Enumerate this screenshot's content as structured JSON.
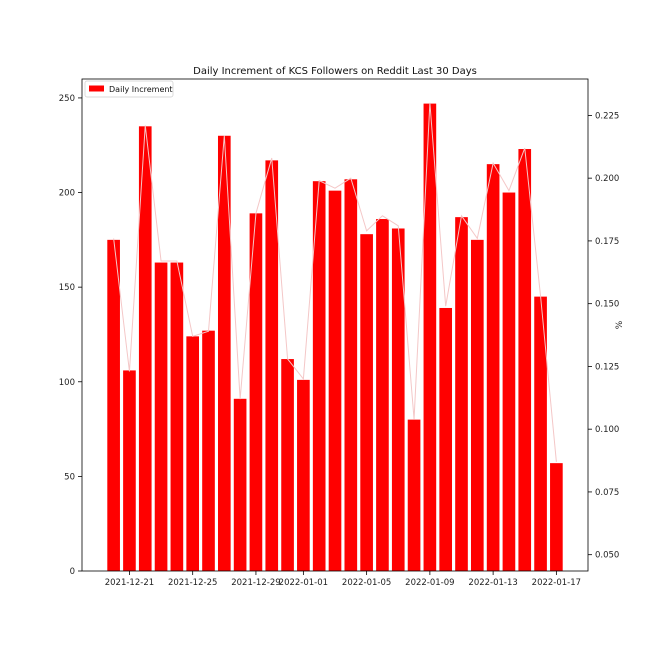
{
  "chart_data": {
    "type": "bar",
    "title": "Daily Increment of KCS Followers on Reddit Last 30 Days",
    "xlabel": "",
    "ylabel": "",
    "y2label": "%",
    "legend": {
      "placement": "top-left",
      "entries": [
        "Daily Increment"
      ]
    },
    "bar_color": "#ff0000",
    "line_color": "#f4c7c7",
    "series": [
      {
        "name": "Daily Increment",
        "type": "bar",
        "axis": "left",
        "x": [
          "2021-12-20",
          "2021-12-21",
          "2021-12-22",
          "2021-12-23",
          "2021-12-24",
          "2021-12-25",
          "2021-12-26",
          "2021-12-27",
          "2021-12-28",
          "2021-12-29",
          "2021-12-30",
          "2021-12-31",
          "2022-01-01",
          "2022-01-02",
          "2022-01-03",
          "2022-01-04",
          "2022-01-05",
          "2022-01-06",
          "2022-01-07",
          "2022-01-08",
          "2022-01-09",
          "2022-01-10",
          "2022-01-11",
          "2022-01-12",
          "2022-01-13",
          "2022-01-14",
          "2022-01-15",
          "2022-01-16",
          "2022-01-17"
        ],
        "values": [
          175,
          106,
          235,
          163,
          163,
          124,
          127,
          230,
          91,
          189,
          217,
          112,
          101,
          206,
          201,
          207,
          178,
          186,
          181,
          80,
          247,
          139,
          187,
          175,
          215,
          200,
          223,
          145,
          57
        ]
      },
      {
        "type": "line",
        "axis": "right",
        "x": [
          "2021-12-20",
          "2021-12-21",
          "2021-12-22",
          "2021-12-23",
          "2021-12-24",
          "2021-12-25",
          "2021-12-26",
          "2021-12-27",
          "2021-12-28",
          "2021-12-29",
          "2021-12-30",
          "2021-12-31",
          "2022-01-01",
          "2022-01-02",
          "2022-01-03",
          "2022-01-04",
          "2022-01-05",
          "2022-01-06",
          "2022-01-07",
          "2022-01-08",
          "2022-01-09",
          "2022-01-10",
          "2022-01-11",
          "2022-01-12",
          "2022-01-13",
          "2022-01-14",
          "2022-01-15",
          "2022-01-16",
          "2022-01-17"
        ],
        "values": [
          0.176,
          0.123,
          0.221,
          0.167,
          0.167,
          0.137,
          0.139,
          0.217,
          0.112,
          0.186,
          0.208,
          0.128,
          0.12,
          0.199,
          0.196,
          0.2,
          0.179,
          0.185,
          0.181,
          0.104,
          0.23,
          0.149,
          0.185,
          0.176,
          0.206,
          0.195,
          0.212,
          0.153,
          0.087
        ]
      }
    ],
    "xticks": [
      "2021-12-21",
      "2021-12-25",
      "2021-12-29",
      "2022-01-01",
      "2022-01-05",
      "2022-01-09",
      "2022-01-13",
      "2022-01-17"
    ],
    "yticks": [
      0,
      50,
      100,
      150,
      200,
      250
    ],
    "y2ticks": [
      "0.050",
      "0.075",
      "0.100",
      "0.125",
      "0.150",
      "0.175",
      "0.200",
      "0.225"
    ],
    "ylim": [
      0,
      260
    ],
    "y2lim": [
      0.0435,
      0.2395
    ],
    "xlim": [
      "2021-12-18",
      "2022-01-19"
    ],
    "grid": false
  }
}
